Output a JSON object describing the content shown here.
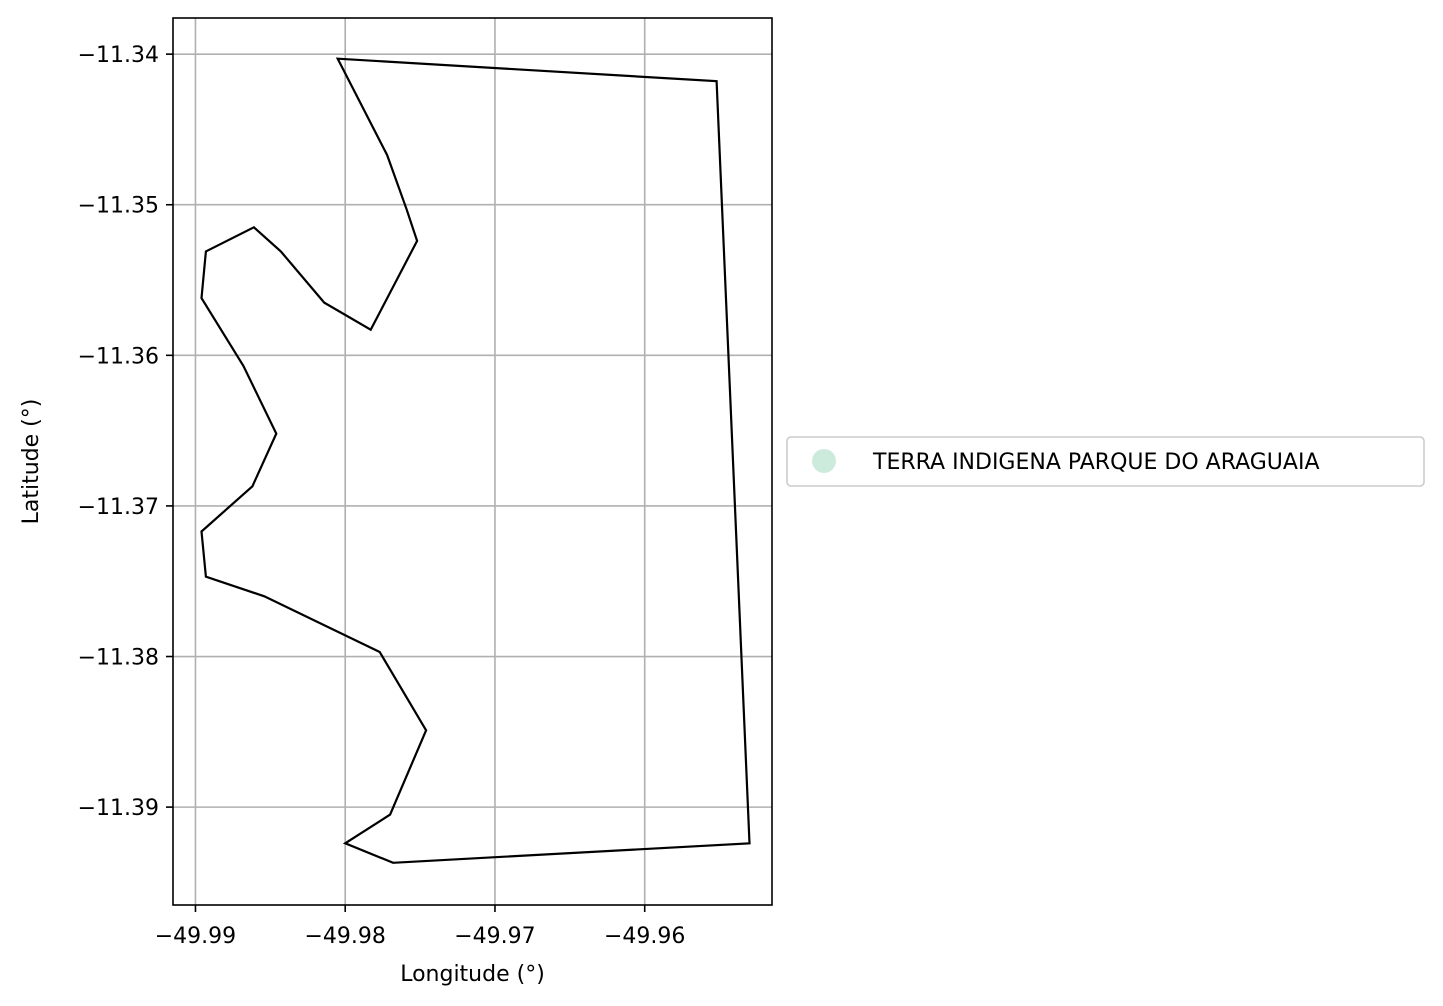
{
  "chart_data": {
    "type": "map",
    "title": "",
    "xlabel": "Longitude (°)",
    "ylabel": "Latitude (°)",
    "xlim": [
      -49.9915,
      -49.9515
    ],
    "ylim": [
      -11.3965,
      -11.3376
    ],
    "grid": true,
    "xticks": [
      -49.99,
      -49.98,
      -49.97,
      -49.96
    ],
    "xtick_labels": [
      "−49.99",
      "−49.98",
      "−49.97",
      "−49.96"
    ],
    "yticks": [
      -11.34,
      -11.35,
      -11.36,
      -11.37,
      -11.38,
      -11.39
    ],
    "ytick_labels": [
      "−11.34",
      "−11.35",
      "−11.36",
      "−11.37",
      "−11.38",
      "−11.39"
    ],
    "legend_position": "center-left, outside right of plot",
    "series": [
      {
        "name": "TERRA INDIGENA PARQUE DO ARAGUAIA",
        "color": "#ccebdc",
        "edge_color": "#000000",
        "polygon": [
          [
            -49.9805,
            -11.3403
          ],
          [
            -49.9552,
            -11.3418
          ],
          [
            -49.953,
            -11.3924
          ],
          [
            -49.9768,
            -11.3937
          ],
          [
            -49.98,
            -11.3924
          ],
          [
            -49.977,
            -11.3905
          ],
          [
            -49.9746,
            -11.3849
          ],
          [
            -49.9777,
            -11.3797
          ],
          [
            -49.9854,
            -11.376
          ],
          [
            -49.9893,
            -11.3747
          ],
          [
            -49.9896,
            -11.3717
          ],
          [
            -49.9862,
            -11.3687
          ],
          [
            -49.9846,
            -11.3652
          ],
          [
            -49.9868,
            -11.3607
          ],
          [
            -49.9896,
            -11.3562
          ],
          [
            -49.9893,
            -11.3531
          ],
          [
            -49.9861,
            -11.3515
          ],
          [
            -49.9843,
            -11.3531
          ],
          [
            -49.9814,
            -11.3565
          ],
          [
            -49.9783,
            -11.3583
          ],
          [
            -49.9752,
            -11.3524
          ],
          [
            -49.9759,
            -11.3503
          ],
          [
            -49.9772,
            -11.3467
          ],
          [
            -49.9805,
            -11.3403
          ]
        ]
      }
    ]
  }
}
